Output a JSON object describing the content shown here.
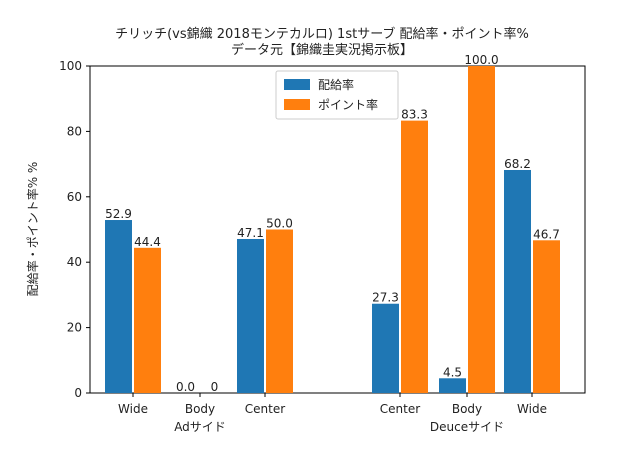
{
  "chart_data": {
    "type": "bar",
    "title": "チリッチ(vs錦織 2018モンテカルロ) 1stサーブ 配給率・ポイント率%",
    "subtitle": "データ元【錦織圭実況掲示板】",
    "ylabel": "配給率・ポイント率% %",
    "ylim": [
      0,
      100
    ],
    "yticks": [
      0,
      20,
      40,
      60,
      80,
      100
    ],
    "categories": [
      "Wide",
      "Body",
      "Center",
      "Center",
      "Body",
      "Wide"
    ],
    "groups": [
      {
        "label": "Adサイド",
        "members": [
          "Wide",
          "Body",
          "Center"
        ]
      },
      {
        "label": "Deuceサイド",
        "members": [
          "Center",
          "Body",
          "Wide"
        ]
      }
    ],
    "series": [
      {
        "name": "配給率",
        "color": "#1f77b4",
        "values": [
          52.9,
          0.0,
          47.1,
          27.3,
          4.5,
          68.2
        ],
        "labels": [
          "52.9",
          "0.0",
          "47.1",
          "27.3",
          "4.5",
          "68.2"
        ]
      },
      {
        "name": "ポイント率",
        "color": "#ff7f0e",
        "values": [
          44.4,
          0,
          50.0,
          83.3,
          100.0,
          46.7
        ],
        "labels": [
          "44.4",
          "0",
          "50.0",
          "83.3",
          "100.0",
          "46.7"
        ]
      }
    ],
    "legend": "top-center"
  }
}
